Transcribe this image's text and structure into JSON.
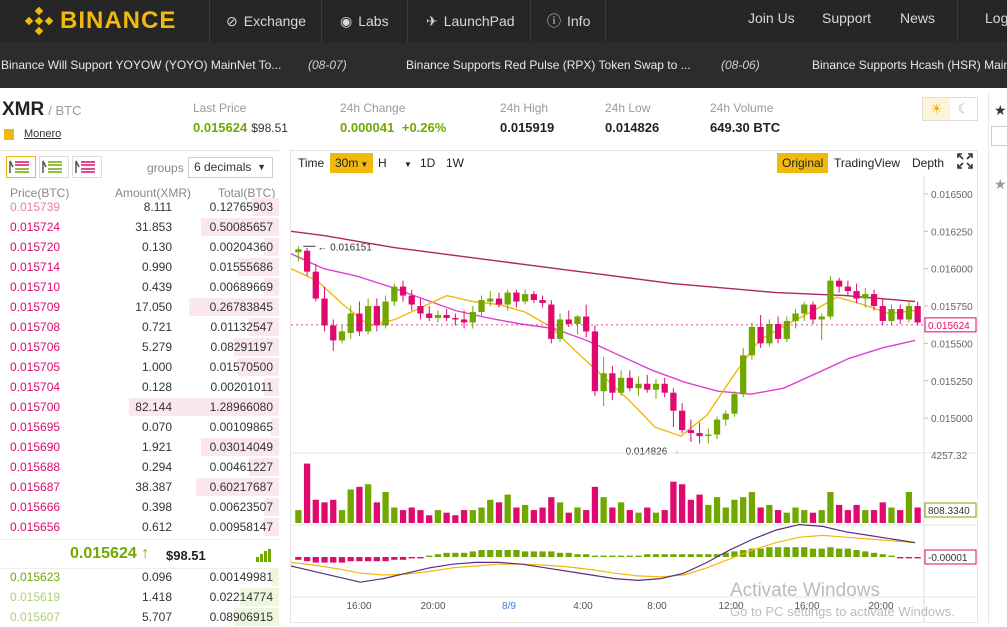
{
  "nav": {
    "logo": "BINANCE",
    "items": [
      {
        "label": "Exchange",
        "icon": "exchange-icon"
      },
      {
        "label": "Labs",
        "icon": "eye-icon"
      },
      {
        "label": "LaunchPad",
        "icon": "rocket-icon"
      },
      {
        "label": "Info",
        "icon": "info-icon"
      }
    ],
    "right": [
      "Join Us",
      "Support",
      "News",
      "Log"
    ]
  },
  "ticker": [
    {
      "text": "Binance Will Support YOYOW (YOYO) MainNet To...",
      "date": "(08-07)"
    },
    {
      "text": "Binance Supports Red Pulse (RPX) Token Swap to ...",
      "date": "(08-06)"
    },
    {
      "text": "Binance Supports Hcash (HSR) Mainn",
      "date": ""
    }
  ],
  "market": {
    "base": "XMR",
    "quote": "/ BTC",
    "coin_name": "Monero",
    "last_price_label": "Last Price",
    "last_price": "0.015624",
    "last_price_usd": "$98.51",
    "change_label": "24h Change",
    "change": "0.000041",
    "change_pct": "+0.26%",
    "high_label": "24h High",
    "high": "0.015919",
    "low_label": "24h Low",
    "low": "0.014826",
    "volume_label": "24h Volume",
    "volume": "649.30 BTC",
    "theme_icons": [
      "sun-icon",
      "moon-icon"
    ]
  },
  "orderbook": {
    "groups_label": "groups",
    "decimals": "6 decimals",
    "headers": {
      "price": "Price(BTC)",
      "amount": "Amount(XMR)",
      "total": "Total(BTC)"
    },
    "asks": [
      {
        "price": "0.015739",
        "amount": "8.111",
        "total": "0.12765903",
        "depth": 0.18
      },
      {
        "price": "0.015724",
        "amount": "31.853",
        "total": "0.50085657",
        "depth": 0.52
      },
      {
        "price": "0.015720",
        "amount": "0.130",
        "total": "0.00204360",
        "depth": 0.1
      },
      {
        "price": "0.015714",
        "amount": "0.990",
        "total": "0.01555686",
        "depth": 0.27
      },
      {
        "price": "0.015710",
        "amount": "0.439",
        "total": "0.00689669",
        "depth": 0.1
      },
      {
        "price": "0.015709",
        "amount": "17.050",
        "total": "0.26783845",
        "depth": 0.6
      },
      {
        "price": "0.015708",
        "amount": "0.721",
        "total": "0.01132547",
        "depth": 0.2
      },
      {
        "price": "0.015706",
        "amount": "5.279",
        "total": "0.08291197",
        "depth": 0.3
      },
      {
        "price": "0.015705",
        "amount": "1.000",
        "total": "0.01570500",
        "depth": 0.27
      },
      {
        "price": "0.015704",
        "amount": "0.128",
        "total": "0.00201011",
        "depth": 0.1
      },
      {
        "price": "0.015700",
        "amount": "82.144",
        "total": "1.28966080",
        "depth": 1.0
      },
      {
        "price": "0.015695",
        "amount": "0.070",
        "total": "0.00109865",
        "depth": 0.05
      },
      {
        "price": "0.015690",
        "amount": "1.921",
        "total": "0.03014049",
        "depth": 0.52
      },
      {
        "price": "0.015688",
        "amount": "0.294",
        "total": "0.00461227",
        "depth": 0.2
      },
      {
        "price": "0.015687",
        "amount": "38.387",
        "total": "0.60217687",
        "depth": 0.55
      },
      {
        "price": "0.015666",
        "amount": "0.398",
        "total": "0.00623507",
        "depth": 0.1
      },
      {
        "price": "0.015656",
        "amount": "0.612",
        "total": "0.00958147",
        "depth": 0.1
      }
    ],
    "last": {
      "price": "0.015624",
      "arrow": "↑",
      "usd": "$98.51",
      "bars_icon": "signal-bars-icon"
    },
    "bids": [
      {
        "price": "0.015623",
        "amount": "0.096",
        "total": "0.00149981",
        "depth": 0.05
      },
      {
        "price": "0.015619",
        "amount": "1.418",
        "total": "0.02214774",
        "depth": 0.26
      },
      {
        "price": "0.015607",
        "amount": "5.707",
        "total": "0.08906915",
        "depth": 0.3
      }
    ]
  },
  "chart_toolbar": {
    "intervals": [
      "Time",
      "30m",
      "H",
      "",
      "1D",
      "1W"
    ],
    "selected": "30m",
    "views": [
      "Original",
      "TradingView",
      "Depth"
    ],
    "selected_view": "Original",
    "fullscreen_icon": "fullscreen-icon"
  },
  "chart_data": {
    "type": "candlestick",
    "x_ticks": [
      "16:00",
      "20:00",
      "8/9",
      "4:00",
      "8:00",
      "12:00",
      "16:00",
      "20:00"
    ],
    "y_ticks": [
      "0.016500",
      "0.016250",
      "0.016000",
      "0.015750",
      "0.015500",
      "0.015250",
      "0.015000"
    ],
    "ylim": [
      0.01478,
      0.0166
    ],
    "current_price_label": "0.015624",
    "high_marker": "0.016151",
    "low_marker": "0.014826",
    "candles": [
      [
        0.01611,
        0.01615,
        0.01605,
        0.01613
      ],
      [
        0.01612,
        0.01614,
        0.01595,
        0.01598
      ],
      [
        0.01598,
        0.01603,
        0.01578,
        0.0158
      ],
      [
        0.0158,
        0.01588,
        0.01558,
        0.01562
      ],
      [
        0.01562,
        0.01566,
        0.01545,
        0.01552
      ],
      [
        0.01552,
        0.01562,
        0.0155,
        0.01558
      ],
      [
        0.01557,
        0.01575,
        0.01553,
        0.0157
      ],
      [
        0.0157,
        0.01578,
        0.01555,
        0.01558
      ],
      [
        0.01558,
        0.0158,
        0.01556,
        0.01575
      ],
      [
        0.01575,
        0.0158,
        0.01558,
        0.01562
      ],
      [
        0.01562,
        0.01582,
        0.0156,
        0.01578
      ],
      [
        0.01578,
        0.0159,
        0.01575,
        0.01588
      ],
      [
        0.01588,
        0.01592,
        0.01578,
        0.01582
      ],
      [
        0.01582,
        0.01586,
        0.01572,
        0.01576
      ],
      [
        0.01575,
        0.0158,
        0.01566,
        0.0157
      ],
      [
        0.0157,
        0.01575,
        0.01565,
        0.01567
      ],
      [
        0.01567,
        0.01572,
        0.01564,
        0.01569
      ],
      [
        0.01569,
        0.01573,
        0.01565,
        0.01567
      ],
      [
        0.01567,
        0.0157,
        0.01562,
        0.01566
      ],
      [
        0.01566,
        0.01572,
        0.0156,
        0.01564
      ],
      [
        0.01564,
        0.01575,
        0.0156,
        0.01571
      ],
      [
        0.01571,
        0.01582,
        0.01568,
        0.01579
      ],
      [
        0.01578,
        0.01585,
        0.01575,
        0.0158
      ],
      [
        0.0158,
        0.01584,
        0.01574,
        0.01576
      ],
      [
        0.01576,
        0.01586,
        0.01572,
        0.01584
      ],
      [
        0.01584,
        0.01586,
        0.01574,
        0.01578
      ],
      [
        0.01578,
        0.01586,
        0.01576,
        0.01583
      ],
      [
        0.01583,
        0.01585,
        0.01577,
        0.01579
      ],
      [
        0.01579,
        0.01582,
        0.01574,
        0.01577
      ],
      [
        0.01576,
        0.01579,
        0.0155,
        0.01553
      ],
      [
        0.01553,
        0.0157,
        0.01551,
        0.01566
      ],
      [
        0.01566,
        0.01572,
        0.01561,
        0.01563
      ],
      [
        0.01563,
        0.01569,
        0.01556,
        0.01568
      ],
      [
        0.01568,
        0.01576,
        0.01554,
        0.01558
      ],
      [
        0.01558,
        0.01562,
        0.01515,
        0.01518
      ],
      [
        0.01518,
        0.01541,
        0.01508,
        0.0153
      ],
      [
        0.0153,
        0.01535,
        0.01512,
        0.01517
      ],
      [
        0.01517,
        0.01532,
        0.01515,
        0.01527
      ],
      [
        0.01527,
        0.01532,
        0.01518,
        0.0152
      ],
      [
        0.0152,
        0.01528,
        0.01515,
        0.01523
      ],
      [
        0.01523,
        0.01529,
        0.01517,
        0.01519
      ],
      [
        0.01519,
        0.01526,
        0.01513,
        0.01523
      ],
      [
        0.01523,
        0.01527,
        0.01514,
        0.01517
      ],
      [
        0.01517,
        0.0152,
        0.01494,
        0.01505
      ],
      [
        0.01505,
        0.0151,
        0.0149,
        0.01492
      ],
      [
        0.01492,
        0.01499,
        0.01484,
        0.0149
      ],
      [
        0.0149,
        0.01497,
        0.01483,
        0.01488
      ],
      [
        0.01488,
        0.01493,
        0.01483,
        0.01489
      ],
      [
        0.01489,
        0.01501,
        0.01486,
        0.01499
      ],
      [
        0.01499,
        0.01505,
        0.01495,
        0.01503
      ],
      [
        0.01503,
        0.01518,
        0.01501,
        0.01516
      ],
      [
        0.01516,
        0.01547,
        0.01514,
        0.01542
      ],
      [
        0.01542,
        0.01564,
        0.01539,
        0.01561
      ],
      [
        0.01561,
        0.01569,
        0.01547,
        0.0155
      ],
      [
        0.0155,
        0.01566,
        0.01548,
        0.01563
      ],
      [
        0.01563,
        0.01568,
        0.0155,
        0.01553
      ],
      [
        0.01553,
        0.01568,
        0.01551,
        0.01565
      ],
      [
        0.01565,
        0.01573,
        0.0156,
        0.0157
      ],
      [
        0.0157,
        0.01578,
        0.01565,
        0.01576
      ],
      [
        0.01576,
        0.01578,
        0.01563,
        0.01566
      ],
      [
        0.01566,
        0.0157,
        0.01552,
        0.01568
      ],
      [
        0.01568,
        0.01595,
        0.01566,
        0.01592
      ],
      [
        0.01592,
        0.01594,
        0.01584,
        0.01588
      ],
      [
        0.01588,
        0.01592,
        0.01582,
        0.01585
      ],
      [
        0.01585,
        0.0159,
        0.01577,
        0.0158
      ],
      [
        0.0158,
        0.01587,
        0.01574,
        0.01583
      ],
      [
        0.01583,
        0.01586,
        0.01572,
        0.01575
      ],
      [
        0.01575,
        0.0158,
        0.01562,
        0.01565
      ],
      [
        0.01565,
        0.01576,
        0.01562,
        0.01573
      ],
      [
        0.01573,
        0.01576,
        0.01563,
        0.01566
      ],
      [
        0.01566,
        0.01579,
        0.01564,
        0.01575
      ],
      [
        0.01575,
        0.01578,
        0.01562,
        0.01564
      ]
    ],
    "ma_slow": [
      0.0161,
      0.016,
      0.01595,
      0.01588,
      0.0158,
      0.01572,
      0.01567,
      0.01563,
      0.0156,
      0.01552,
      0.01542,
      0.01532,
      0.01524,
      0.01518,
      0.01516,
      0.0152,
      0.0153,
      0.0154,
      0.01547,
      0.01552
    ],
    "ma_fast": [
      0.016,
      0.01592,
      0.01576,
      0.01562,
      0.01566,
      0.01574,
      0.01582,
      0.01578,
      0.01576,
      0.01571,
      0.01561,
      0.01544,
      0.01528,
      0.01512,
      0.01494,
      0.01488,
      0.01502,
      0.01528,
      0.01552,
      0.01562,
      0.01571,
      0.01581,
      0.01576,
      0.0157,
      0.01572
    ],
    "ma_long": [
      0.01625,
      0.01622,
      0.01618,
      0.01614,
      0.01611,
      0.01608,
      0.01605,
      0.01602,
      0.01599,
      0.01596,
      0.01593,
      0.0159,
      0.01588,
      0.01586,
      0.01584,
      0.01583,
      0.01582,
      0.0158,
      0.01578
    ],
    "volume_label": "4257.32",
    "volume_current": "808.3340",
    "volumes": [
      500,
      2300,
      900,
      800,
      900,
      500,
      1300,
      1400,
      1500,
      800,
      1200,
      600,
      500,
      600,
      500,
      300,
      500,
      400,
      300,
      500,
      500,
      600,
      900,
      800,
      1100,
      600,
      700,
      500,
      600,
      1000,
      800,
      400,
      600,
      500,
      1400,
      1000,
      600,
      800,
      500,
      400,
      600,
      400,
      500,
      1600,
      1500,
      900,
      1100,
      700,
      1000,
      600,
      900,
      1000,
      1200,
      600,
      700,
      500,
      400,
      600,
      500,
      400,
      500,
      1200,
      700,
      500,
      700,
      500,
      500,
      800,
      600,
      500,
      1200,
      600
    ],
    "macd_label": "-0.00001",
    "macd": [
      -2,
      -3,
      -4,
      -4,
      -4,
      -4,
      -3,
      -3,
      -3,
      -3,
      -3,
      -2,
      -2,
      -1,
      -1,
      1,
      2,
      3,
      3,
      3,
      4,
      5,
      5,
      5,
      5,
      5,
      4,
      4,
      4,
      4,
      3,
      3,
      2,
      2,
      1,
      1,
      1,
      1,
      1,
      1,
      2,
      2,
      2,
      2,
      2,
      2,
      2,
      2,
      2,
      3,
      4,
      5,
      6,
      6,
      7,
      7,
      7,
      7,
      7,
      6,
      6,
      7,
      6,
      6,
      5,
      4,
      3,
      2,
      1,
      -1,
      -1,
      -1
    ],
    "dif_line": [
      -10,
      -16,
      -22,
      -28,
      -24,
      -18,
      -12,
      -8,
      -6,
      -6,
      -8,
      -12,
      -16,
      -20,
      -24,
      -26,
      -24,
      -18,
      -6,
      8,
      20,
      30,
      36,
      34,
      28,
      24,
      20,
      16
    ],
    "dea_line": [
      -6,
      -9,
      -13,
      -18,
      -20,
      -19,
      -16,
      -12,
      -10,
      -8,
      -8,
      -9,
      -11,
      -14,
      -18,
      -21,
      -22,
      -20,
      -12,
      -2,
      8,
      16,
      22,
      24,
      22,
      20,
      18,
      16
    ],
    "colors": {
      "up": "#70a800",
      "down": "#e00a6f",
      "ma_slow": "#e040d0",
      "ma_fast": "#f0b90b",
      "ma_long": "#b0246a"
    }
  },
  "watermark": {
    "title": "Activate Windows",
    "subtitle": "Go to PC settings to activate Windows."
  }
}
